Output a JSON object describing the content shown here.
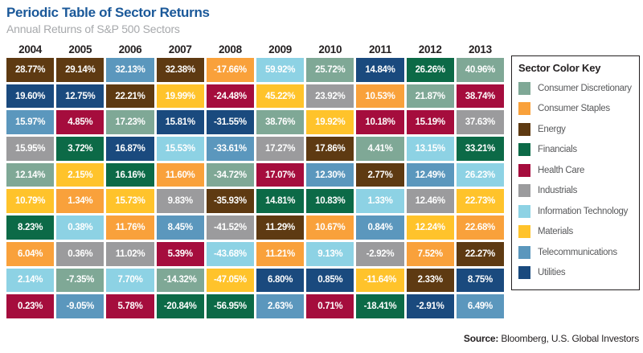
{
  "header": {
    "title": "Periodic Table of Sector Returns",
    "subtitle": "Annual Returns of S&P 500 Sectors"
  },
  "source": {
    "label": "Source:",
    "text": " Bloomberg, U.S. Global Investors"
  },
  "legend": {
    "title": "Sector Color Key",
    "items": [
      {
        "key": "consumer-discretionary",
        "label": "Consumer Discretionary"
      },
      {
        "key": "consumer-staples",
        "label": "Consumer Staples"
      },
      {
        "key": "energy",
        "label": "Energy"
      },
      {
        "key": "financials",
        "label": "Financials"
      },
      {
        "key": "health-care",
        "label": "Health Care"
      },
      {
        "key": "industrials",
        "label": "Industrials"
      },
      {
        "key": "information-technology",
        "label": "Information Technology"
      },
      {
        "key": "materials",
        "label": "Materials"
      },
      {
        "key": "telecommunications",
        "label": "Telecommunications"
      },
      {
        "key": "utilities",
        "label": "Utilities"
      }
    ]
  },
  "sector_colors": {
    "consumer-discretionary": "#7FA896",
    "consumer-staples": "#F9A13B",
    "energy": "#5E3A12",
    "financials": "#0C6A47",
    "health-care": "#A50D3D",
    "industrials": "#9B9B9D",
    "information-technology": "#8DD2E4",
    "materials": "#FFC32B",
    "telecommunications": "#5B97BD",
    "utilities": "#1A4A7E"
  },
  "ui_colors": {
    "title_blue": "#1A5899",
    "subtitle_gray": "#A7A9AC",
    "year_text": "#231F20",
    "legend_label": "#58595B",
    "cell_text": "#FFFFFF"
  },
  "chart_data": {
    "type": "heatmap",
    "title": "Periodic Table of Sector Returns",
    "subtitle": "Annual Returns of S&P 500 Sectors",
    "unit": "percent",
    "legend_position": "right",
    "columns": [
      "2004",
      "2005",
      "2006",
      "2007",
      "2008",
      "2009",
      "2010",
      "2011",
      "2012",
      "2013"
    ],
    "rows": [
      [
        {
          "v": "28.77%",
          "s": "energy"
        },
        {
          "v": "29.14%",
          "s": "energy"
        },
        {
          "v": "32.13%",
          "s": "telecommunications"
        },
        {
          "v": "32.38%",
          "s": "energy"
        },
        {
          "v": "-17.66%",
          "s": "consumer-staples"
        },
        {
          "v": "59.92%",
          "s": "information-technology"
        },
        {
          "v": "25.72%",
          "s": "consumer-discretionary"
        },
        {
          "v": "14.84%",
          "s": "utilities"
        },
        {
          "v": "26.26%",
          "s": "financials"
        },
        {
          "v": "40.96%",
          "s": "consumer-discretionary"
        }
      ],
      [
        {
          "v": "19.60%",
          "s": "utilities"
        },
        {
          "v": "12.75%",
          "s": "utilities"
        },
        {
          "v": "22.21%",
          "s": "energy"
        },
        {
          "v": "19.99%",
          "s": "materials"
        },
        {
          "v": "-24.48%",
          "s": "health-care"
        },
        {
          "v": "45.22%",
          "s": "materials"
        },
        {
          "v": "23.92%",
          "s": "industrials"
        },
        {
          "v": "10.53%",
          "s": "consumer-staples"
        },
        {
          "v": "21.87%",
          "s": "consumer-discretionary"
        },
        {
          "v": "38.74%",
          "s": "health-care"
        }
      ],
      [
        {
          "v": "15.97%",
          "s": "telecommunications"
        },
        {
          "v": "4.85%",
          "s": "health-care"
        },
        {
          "v": "17.23%",
          "s": "consumer-discretionary"
        },
        {
          "v": "15.81%",
          "s": "utilities"
        },
        {
          "v": "-31.55%",
          "s": "utilities"
        },
        {
          "v": "38.76%",
          "s": "consumer-discretionary"
        },
        {
          "v": "19.92%",
          "s": "materials"
        },
        {
          "v": "10.18%",
          "s": "health-care"
        },
        {
          "v": "15.19%",
          "s": "health-care"
        },
        {
          "v": "37.63%",
          "s": "industrials"
        }
      ],
      [
        {
          "v": "15.95%",
          "s": "industrials"
        },
        {
          "v": "3.72%",
          "s": "financials"
        },
        {
          "v": "16.87%",
          "s": "utilities"
        },
        {
          "v": "15.53%",
          "s": "information-technology"
        },
        {
          "v": "-33.61%",
          "s": "telecommunications"
        },
        {
          "v": "17.27%",
          "s": "industrials"
        },
        {
          "v": "17.86%",
          "s": "energy"
        },
        {
          "v": "4.41%",
          "s": "consumer-discretionary"
        },
        {
          "v": "13.15%",
          "s": "information-technology"
        },
        {
          "v": "33.21%",
          "s": "financials"
        }
      ],
      [
        {
          "v": "12.14%",
          "s": "consumer-discretionary"
        },
        {
          "v": "2.15%",
          "s": "materials"
        },
        {
          "v": "16.16%",
          "s": "financials"
        },
        {
          "v": "11.60%",
          "s": "consumer-staples"
        },
        {
          "v": "-34.72%",
          "s": "consumer-discretionary"
        },
        {
          "v": "17.07%",
          "s": "health-care"
        },
        {
          "v": "12.30%",
          "s": "telecommunications"
        },
        {
          "v": "2.77%",
          "s": "energy"
        },
        {
          "v": "12.49%",
          "s": "telecommunications"
        },
        {
          "v": "26.23%",
          "s": "information-technology"
        }
      ],
      [
        {
          "v": "10.79%",
          "s": "materials"
        },
        {
          "v": "1.34%",
          "s": "consumer-staples"
        },
        {
          "v": "15.73%",
          "s": "materials"
        },
        {
          "v": "9.83%",
          "s": "industrials"
        },
        {
          "v": "-35.93%",
          "s": "energy"
        },
        {
          "v": "14.81%",
          "s": "financials"
        },
        {
          "v": "10.83%",
          "s": "financials"
        },
        {
          "v": "1.33%",
          "s": "information-technology"
        },
        {
          "v": "12.46%",
          "s": "industrials"
        },
        {
          "v": "22.73%",
          "s": "materials"
        }
      ],
      [
        {
          "v": "8.23%",
          "s": "financials"
        },
        {
          "v": "0.38%",
          "s": "information-technology"
        },
        {
          "v": "11.76%",
          "s": "consumer-staples"
        },
        {
          "v": "8.45%",
          "s": "telecommunications"
        },
        {
          "v": "-41.52%",
          "s": "industrials"
        },
        {
          "v": "11.29%",
          "s": "energy"
        },
        {
          "v": "10.67%",
          "s": "consumer-staples"
        },
        {
          "v": "0.84%",
          "s": "telecommunications"
        },
        {
          "v": "12.24%",
          "s": "materials"
        },
        {
          "v": "22.68%",
          "s": "consumer-staples"
        }
      ],
      [
        {
          "v": "6.04%",
          "s": "consumer-staples"
        },
        {
          "v": "0.36%",
          "s": "industrials"
        },
        {
          "v": "11.02%",
          "s": "industrials"
        },
        {
          "v": "5.39%",
          "s": "health-care"
        },
        {
          "v": "-43.68%",
          "s": "information-technology"
        },
        {
          "v": "11.21%",
          "s": "consumer-staples"
        },
        {
          "v": "9.13%",
          "s": "information-technology"
        },
        {
          "v": "-2.92%",
          "s": "industrials"
        },
        {
          "v": "7.52%",
          "s": "consumer-staples"
        },
        {
          "v": "22.27%",
          "s": "energy"
        }
      ],
      [
        {
          "v": "2.14%",
          "s": "information-technology"
        },
        {
          "v": "-7.35%",
          "s": "consumer-discretionary"
        },
        {
          "v": "7.70%",
          "s": "information-technology"
        },
        {
          "v": "-14.32%",
          "s": "consumer-discretionary"
        },
        {
          "v": "-47.05%",
          "s": "materials"
        },
        {
          "v": "6.80%",
          "s": "utilities"
        },
        {
          "v": "0.85%",
          "s": "utilities"
        },
        {
          "v": "-11.64%",
          "s": "materials"
        },
        {
          "v": "2.33%",
          "s": "energy"
        },
        {
          "v": "8.75%",
          "s": "utilities"
        }
      ],
      [
        {
          "v": "0.23%",
          "s": "health-care"
        },
        {
          "v": "-9.05%",
          "s": "telecommunications"
        },
        {
          "v": "5.78%",
          "s": "health-care"
        },
        {
          "v": "-20.84%",
          "s": "financials"
        },
        {
          "v": "-56.95%",
          "s": "financials"
        },
        {
          "v": "2.63%",
          "s": "telecommunications"
        },
        {
          "v": "0.71%",
          "s": "health-care"
        },
        {
          "v": "-18.41%",
          "s": "financials"
        },
        {
          "v": "-2.91%",
          "s": "utilities"
        },
        {
          "v": "6.49%",
          "s": "telecommunications"
        }
      ]
    ]
  }
}
